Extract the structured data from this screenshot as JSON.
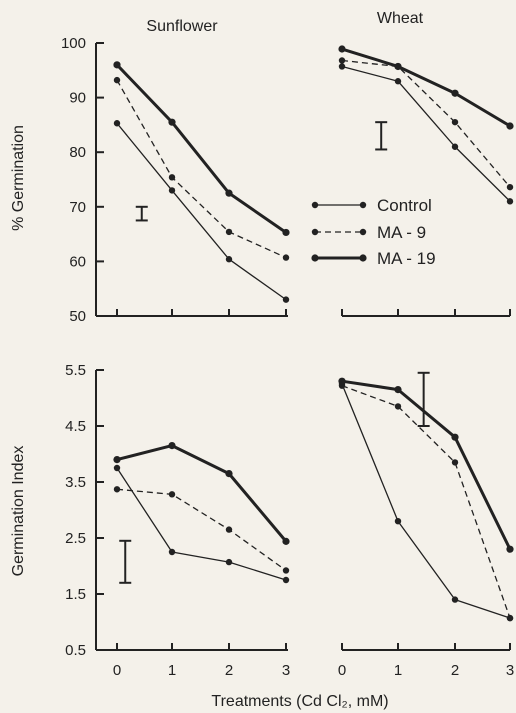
{
  "xlabel": "Treatments (Cd Cl₂, mM)",
  "colors": {
    "ink": "#222222",
    "background": "#f4f1ea"
  },
  "legend": {
    "placement": "center",
    "entries": [
      {
        "label": "Control",
        "style": "thin-solid"
      },
      {
        "label": "MA - 9",
        "style": "dashed"
      },
      {
        "label": "MA - 19",
        "style": "thick-solid"
      }
    ]
  },
  "chart_data": [
    {
      "type": "line",
      "title": "Sunflower",
      "ylabel": "% Germination",
      "x": [
        0,
        1,
        2,
        3
      ],
      "ylim": [
        50,
        100
      ],
      "yticks": [
        50,
        60,
        70,
        80,
        90,
        100
      ],
      "show_x_tick_labels": false,
      "series": [
        {
          "name": "Control",
          "values": [
            85.3,
            73,
            60.4,
            53
          ]
        },
        {
          "name": "MA - 9",
          "values": [
            93.2,
            75.4,
            65.4,
            60.7
          ]
        },
        {
          "name": "MA - 19",
          "values": [
            96,
            85.5,
            72.5,
            65.3
          ]
        }
      ],
      "error_bar": {
        "x": 0.45,
        "y_low": 67.5,
        "y_high": 70
      }
    },
    {
      "type": "line",
      "title": "Wheat",
      "x": [
        0,
        1,
        2,
        3
      ],
      "ylim": [
        50,
        100
      ],
      "show_x_tick_labels": false,
      "series": [
        {
          "name": "Control",
          "values": [
            95.7,
            93,
            81,
            71
          ]
        },
        {
          "name": "MA - 9",
          "values": [
            96.8,
            95.7,
            85.5,
            73.6
          ]
        },
        {
          "name": "MA - 19",
          "values": [
            98.9,
            95.7,
            90.8,
            84.8
          ]
        }
      ],
      "error_bar": {
        "x": 0.7,
        "y_low": 80.5,
        "y_high": 85.5
      }
    },
    {
      "type": "line",
      "ylabel": "Germination Index",
      "x": [
        0,
        1,
        2,
        3
      ],
      "ylim": [
        0.5,
        5.5
      ],
      "yticks": [
        0.5,
        1.5,
        2.5,
        3.5,
        4.5,
        5.5
      ],
      "show_x_tick_labels": true,
      "series": [
        {
          "name": "Control",
          "values": [
            3.75,
            2.25,
            2.07,
            1.75
          ]
        },
        {
          "name": "MA - 9",
          "values": [
            3.37,
            3.28,
            2.65,
            1.92
          ]
        },
        {
          "name": "MA - 19",
          "values": [
            3.9,
            4.15,
            3.65,
            2.44
          ]
        }
      ],
      "error_bar": {
        "x": 0.15,
        "y_low": 1.7,
        "y_high": 2.45
      }
    },
    {
      "type": "line",
      "x": [
        0,
        1,
        2,
        3
      ],
      "ylim": [
        0.5,
        5.5
      ],
      "show_x_tick_labels": true,
      "series": [
        {
          "name": "Control",
          "values": [
            5.25,
            2.8,
            1.4,
            1.07
          ]
        },
        {
          "name": "MA - 9",
          "values": [
            5.22,
            4.85,
            3.85,
            1.07
          ]
        },
        {
          "name": "MA - 19",
          "values": [
            5.3,
            5.15,
            4.3,
            2.3
          ]
        }
      ],
      "error_bar": {
        "x": 1.45,
        "y_low": 4.5,
        "y_high": 5.45
      }
    }
  ]
}
